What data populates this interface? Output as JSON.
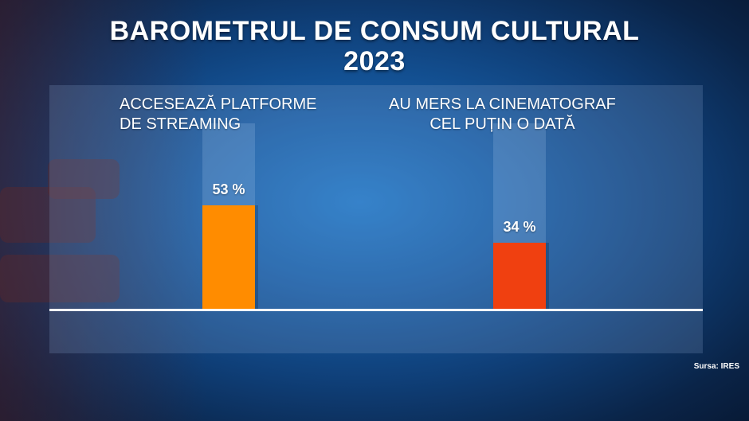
{
  "title_line1": "BAROMETRUL DE CONSUM CULTURAL",
  "title_line2": "2023",
  "source": "Sursa: IRES",
  "colors": {
    "bar_streaming": "#ff8c00",
    "bar_cinema": "#f04010"
  },
  "chart_data": {
    "type": "bar",
    "title": "BAROMETRUL DE CONSUM CULTURAL 2023",
    "categories": [
      "ACCESEAZĂ PLATFORME DE STREAMING",
      "AU MERS LA CINEMATOGRAF CEL PUȚIN O DATĂ"
    ],
    "category_lines": [
      [
        "ACCESEAZĂ PLATFORME",
        "DE STREAMING"
      ],
      [
        "AU MERS LA CINEMATOGRAF",
        "CEL PUȚIN O DATĂ"
      ]
    ],
    "values": [
      53,
      34
    ],
    "value_labels": [
      "53 %",
      "34 %"
    ],
    "ylim": [
      0,
      100
    ],
    "grid": false
  }
}
